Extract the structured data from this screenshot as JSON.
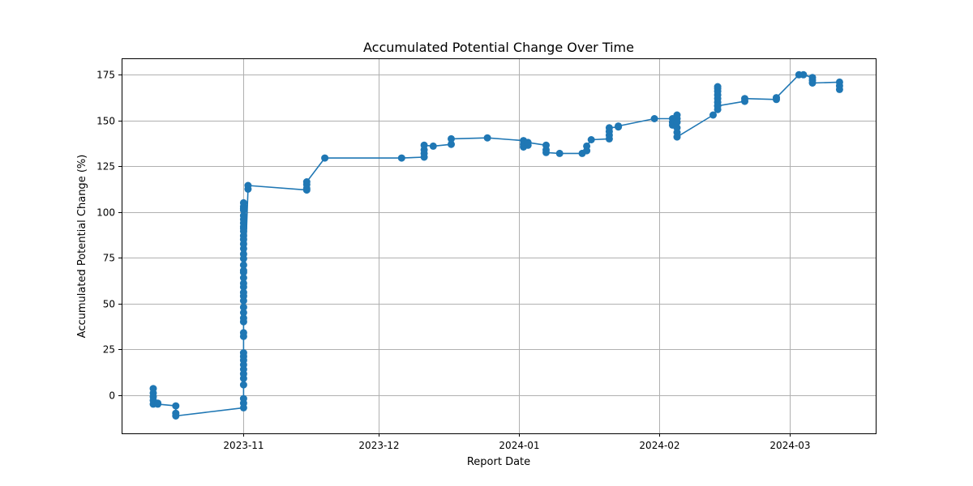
{
  "chart_data": {
    "type": "line",
    "title": "Accumulated Potential Change Over Time",
    "xlabel": "Report Date",
    "ylabel": "Accumulated Potential Change (%)",
    "grid": true,
    "line_color": "#1f77b4",
    "marker_color": "#1f77b4",
    "x_ticks": [
      "2023-11",
      "2023-12",
      "2024-01",
      "2024-02",
      "2024-03"
    ],
    "y_ticks": [
      "0",
      "25",
      "50",
      "75",
      "100",
      "125",
      "150",
      "175"
    ],
    "xlim": [
      "2023-10-05",
      "2024-03-20"
    ],
    "ylim": [
      -21,
      184
    ],
    "series": [
      {
        "x": [
          "2023-10-12",
          "2023-10-12",
          "2023-10-12",
          "2023-10-12",
          "2023-10-12",
          "2023-10-13",
          "2023-10-13",
          "2023-10-17",
          "2023-10-17",
          "2023-10-17",
          "2023-11-01",
          "2023-11-01",
          "2023-11-01",
          "2023-11-01",
          "2023-11-01",
          "2023-11-01",
          "2023-11-01",
          "2023-11-01",
          "2023-11-01",
          "2023-11-01",
          "2023-11-01",
          "2023-11-01",
          "2023-11-01",
          "2023-11-01",
          "2023-11-01",
          "2023-11-01",
          "2023-11-01",
          "2023-11-01",
          "2023-11-01",
          "2023-11-01",
          "2023-11-01",
          "2023-11-01",
          "2023-11-01",
          "2023-11-01",
          "2023-11-01",
          "2023-11-01",
          "2023-11-01",
          "2023-11-01",
          "2023-11-01",
          "2023-11-01",
          "2023-11-01",
          "2023-11-01",
          "2023-11-01",
          "2023-11-01",
          "2023-11-01",
          "2023-11-01",
          "2023-11-01",
          "2023-11-01",
          "2023-11-01",
          "2023-11-01",
          "2023-11-01",
          "2023-11-01",
          "2023-11-02",
          "2023-11-02",
          "2023-11-15",
          "2023-11-15",
          "2023-11-15",
          "2023-11-15",
          "2023-11-19",
          "2023-12-06",
          "2023-12-11",
          "2023-12-11",
          "2023-12-11",
          "2023-12-11",
          "2023-12-13",
          "2023-12-17",
          "2023-12-17",
          "2023-12-25",
          "2024-01-02",
          "2024-01-02",
          "2024-01-02",
          "2024-01-03",
          "2024-01-03",
          "2024-01-07",
          "2024-01-07",
          "2024-01-07",
          "2024-01-10",
          "2024-01-15",
          "2024-01-16",
          "2024-01-16",
          "2024-01-17",
          "2024-01-21",
          "2024-01-21",
          "2024-01-21",
          "2024-01-21",
          "2024-01-23",
          "2024-01-23",
          "2024-01-31",
          "2024-02-04",
          "2024-02-04",
          "2024-02-04",
          "2024-02-05",
          "2024-02-05",
          "2024-02-05",
          "2024-02-05",
          "2024-02-05",
          "2024-02-05",
          "2024-02-13",
          "2024-02-14",
          "2024-02-14",
          "2024-02-14",
          "2024-02-14",
          "2024-02-14",
          "2024-02-14",
          "2024-02-14",
          "2024-02-14",
          "2024-02-14",
          "2024-02-20",
          "2024-02-20",
          "2024-02-27",
          "2024-02-27",
          "2024-03-03",
          "2024-03-04",
          "2024-03-06",
          "2024-03-06",
          "2024-03-06",
          "2024-03-12",
          "2024-03-12",
          "2024-03-12"
        ],
        "y": [
          3.5,
          1,
          -1,
          -3,
          -5,
          -4.5,
          -5,
          -6,
          -10,
          -11.5,
          -7,
          -4.5,
          -2,
          5.5,
          9,
          11.5,
          14,
          16.5,
          19,
          21,
          23,
          32,
          34,
          40,
          42,
          45,
          51.5,
          54,
          56,
          59,
          61,
          64,
          67,
          71,
          74.5,
          77,
          80,
          82.5,
          87,
          89.5,
          92,
          94,
          96,
          101,
          103,
          105,
          102,
          98,
          91,
          85,
          68,
          48,
          112.5,
          114.5,
          112,
          113,
          115,
          116.5,
          129.5,
          129.5,
          130,
          132,
          134,
          136.5,
          136,
          137,
          140,
          140.5,
          139,
          137,
          135.5,
          136.5,
          138,
          136.5,
          134,
          132.5,
          132,
          132,
          133.5,
          136,
          139.5,
          140,
          142,
          144,
          146,
          146.5,
          147,
          151,
          151,
          149,
          147.5,
          153,
          151,
          149,
          146,
          143.5,
          141,
          153,
          156,
          158,
          160,
          162,
          164,
          166,
          167.5,
          168.5,
          158,
          160.5,
          162,
          161.5,
          162.5,
          175,
          175,
          173.5,
          172,
          170.5,
          171,
          169,
          167
        ]
      }
    ]
  }
}
